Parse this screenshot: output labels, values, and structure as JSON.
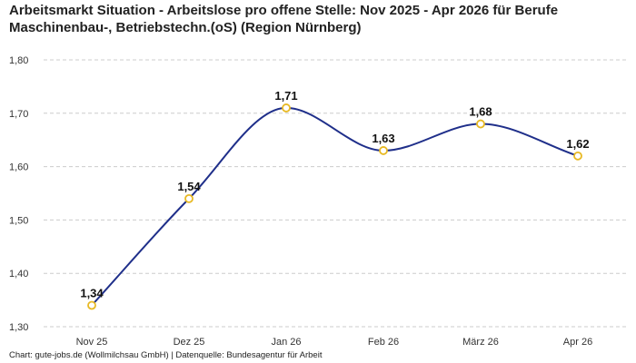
{
  "chart_data": {
    "type": "line",
    "title": "Arbeitsmarkt Situation - Arbeitslose pro offene Stelle: Nov 2025 - Apr 2026 für Berufe Maschinenbau-, Betriebstechn.(oS) (Region Nürnberg)",
    "xlabel": "",
    "ylabel": "",
    "categories": [
      "Nov 25",
      "Dez 25",
      "Jan 26",
      "Feb 26",
      "März 26",
      "Apr 26"
    ],
    "values": [
      1.34,
      1.54,
      1.71,
      1.63,
      1.68,
      1.62
    ],
    "value_labels": [
      "1,34",
      "1,54",
      "1,71",
      "1,63",
      "1,68",
      "1,62"
    ],
    "yticks": [
      1.3,
      1.4,
      1.5,
      1.6,
      1.7,
      1.8
    ],
    "ytick_labels": [
      "1,30",
      "1,40",
      "1,50",
      "1,60",
      "1,70",
      "1,80"
    ],
    "ylim": [
      1.3,
      1.8
    ],
    "grid": true,
    "legend": "none",
    "colors": {
      "line": "#1f2f8a",
      "marker_stroke": "#e8b923",
      "marker_fill": "#ffffff",
      "grid": "#cccccc"
    }
  },
  "footer": "Chart: gute-jobs.de (Wollmilchsau GmbH) | Datenquelle: Bundesagentur für Arbeit"
}
